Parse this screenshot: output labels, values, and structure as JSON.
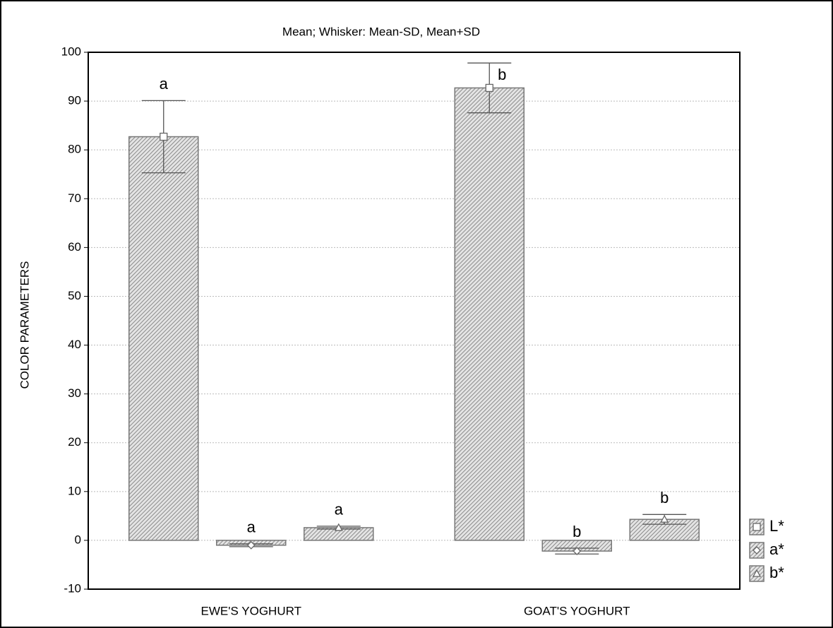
{
  "chart_data": {
    "type": "bar",
    "title": "Mean;  Whisker: Mean-SD, Mean+SD",
    "y_label": "COLOR  PARAMETERS",
    "categories": [
      "EWE'S YOGHURT",
      "GOAT'S YOGHURT"
    ],
    "series": [
      {
        "name": "L*",
        "color": "#8a8a8a",
        "marker": "square",
        "values": [
          82.7,
          92.7
        ],
        "errors": [
          7.4,
          5.1
        ],
        "labels": [
          "a",
          "b"
        ]
      },
      {
        "name": "a*",
        "color": "#8a8a8a",
        "marker": "diamond",
        "values": [
          -1.0,
          -2.2
        ],
        "errors": [
          0.3,
          0.6
        ],
        "labels": [
          "a",
          "b"
        ]
      },
      {
        "name": "b*",
        "color": "#8a8a8a",
        "marker": "triangle",
        "values": [
          2.6,
          4.3
        ],
        "errors": [
          0.3,
          1.0
        ],
        "labels": [
          "a",
          "b"
        ]
      }
    ],
    "ylim": [
      -10,
      100
    ],
    "yticks": [
      -10,
      0,
      10,
      20,
      30,
      40,
      50,
      60,
      70,
      80,
      90,
      100
    ],
    "grid": true,
    "legend": "lower-right-outside"
  }
}
